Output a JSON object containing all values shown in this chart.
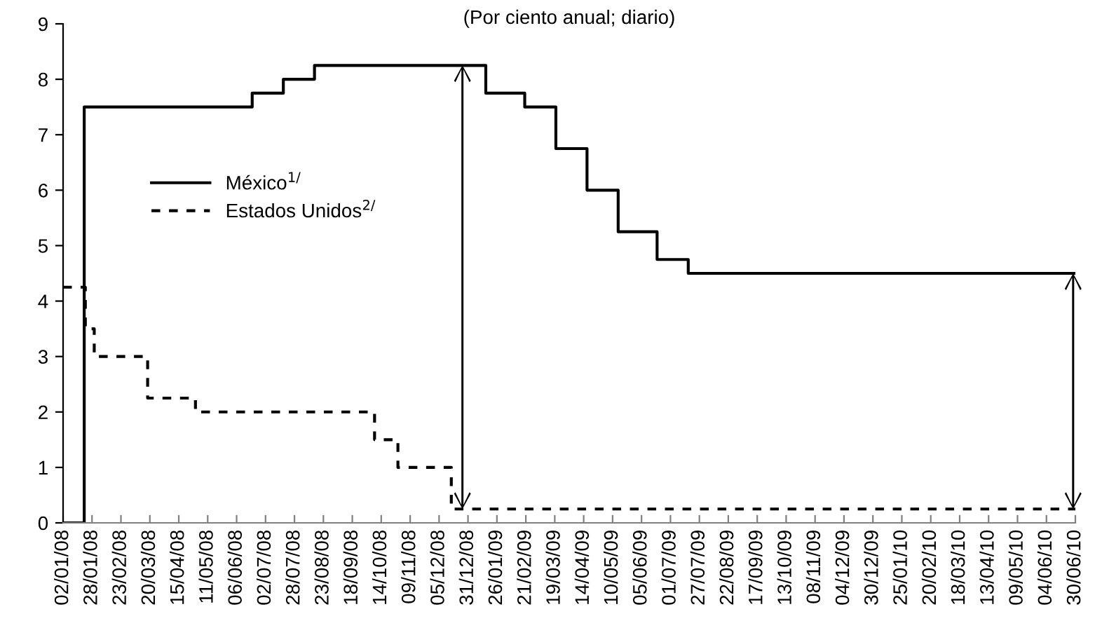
{
  "chart_data": {
    "type": "step",
    "title": "(Por ciento anual; diario)",
    "series": [
      {
        "name": "México$^{1/}$",
        "color": "#000000",
        "line_style": "solid",
        "x": [
          "2008-01-02",
          "2008-01-21",
          "2008-06-20",
          "2008-07-18",
          "2008-08-15",
          "2009-01-16",
          "2009-02-20",
          "2009-03-20",
          "2009-04-17",
          "2009-05-15",
          "2009-06-19",
          "2009-07-17",
          "2010-06-30"
        ],
        "values": [
          0,
          7.5,
          7.75,
          8.0,
          8.25,
          7.75,
          7.5,
          6.75,
          6.0,
          5.25,
          4.75,
          4.5,
          4.5
        ]
      },
      {
        "name": "Estados Unidos$^{2/}$",
        "color": "#000000",
        "line_style": "dashed",
        "x": [
          "2008-01-02",
          "2008-01-22",
          "2008-01-30",
          "2008-03-18",
          "2008-04-30",
          "2008-10-08",
          "2008-10-29",
          "2008-12-16",
          "2010-06-30"
        ],
        "values": [
          4.25,
          3.5,
          3.0,
          2.25,
          2.0,
          1.5,
          1.0,
          0.25,
          0.25
        ]
      }
    ],
    "xlim": [
      "2008-01-02",
      "2010-06-30"
    ],
    "xticks": [
      {
        "value": "2008-01-02",
        "label": "02/01/08"
      },
      {
        "value": "2008-01-28",
        "label": "28/01/08"
      },
      {
        "value": "2008-02-23",
        "label": "23/02/08"
      },
      {
        "value": "2008-03-20",
        "label": "20/03/08"
      },
      {
        "value": "2008-04-15",
        "label": "15/04/08"
      },
      {
        "value": "2008-05-11",
        "label": "11/05/08"
      },
      {
        "value": "2008-06-06",
        "label": "06/06/08"
      },
      {
        "value": "2008-07-02",
        "label": "02/07/08"
      },
      {
        "value": "2008-07-28",
        "label": "28/07/08"
      },
      {
        "value": "2008-08-23",
        "label": "23/08/08"
      },
      {
        "value": "2008-09-18",
        "label": "18/09/08"
      },
      {
        "value": "2008-10-14",
        "label": "14/10/08"
      },
      {
        "value": "2008-11-09",
        "label": "09/11/08"
      },
      {
        "value": "2008-12-05",
        "label": "05/12/08"
      },
      {
        "value": "2008-12-31",
        "label": "31/12/08"
      },
      {
        "value": "2009-01-26",
        "label": "26/01/09"
      },
      {
        "value": "2009-02-21",
        "label": "21/02/09"
      },
      {
        "value": "2009-03-19",
        "label": "19/03/09"
      },
      {
        "value": "2009-04-14",
        "label": "14/04/09"
      },
      {
        "value": "2009-05-10",
        "label": "10/05/09"
      },
      {
        "value": "2009-06-05",
        "label": "05/06/09"
      },
      {
        "value": "2009-07-01",
        "label": "01/07/09"
      },
      {
        "value": "2009-07-27",
        "label": "27/07/09"
      },
      {
        "value": "2009-08-22",
        "label": "22/08/09"
      },
      {
        "value": "2009-09-17",
        "label": "17/09/09"
      },
      {
        "value": "2009-10-13",
        "label": "13/10/09"
      },
      {
        "value": "2009-11-08",
        "label": "08/11/09"
      },
      {
        "value": "2009-12-04",
        "label": "04/12/09"
      },
      {
        "value": "2009-12-30",
        "label": "30/12/09"
      },
      {
        "value": "2010-01-25",
        "label": "25/01/10"
      },
      {
        "value": "2010-02-20",
        "label": "20/02/10"
      },
      {
        "value": "2010-03-18",
        "label": "18/03/10"
      },
      {
        "value": "2010-04-13",
        "label": "13/04/10"
      },
      {
        "value": "2010-05-09",
        "label": "09/05/10"
      },
      {
        "value": "2010-06-04",
        "label": "04/06/10"
      },
      {
        "value": "2010-06-30",
        "label": "30/06/10"
      }
    ],
    "ylim": [
      0,
      9
    ],
    "yticks": [
      0,
      1,
      2,
      3,
      4,
      5,
      6,
      7,
      8,
      9
    ],
    "grid": false,
    "legend": "left"
  }
}
